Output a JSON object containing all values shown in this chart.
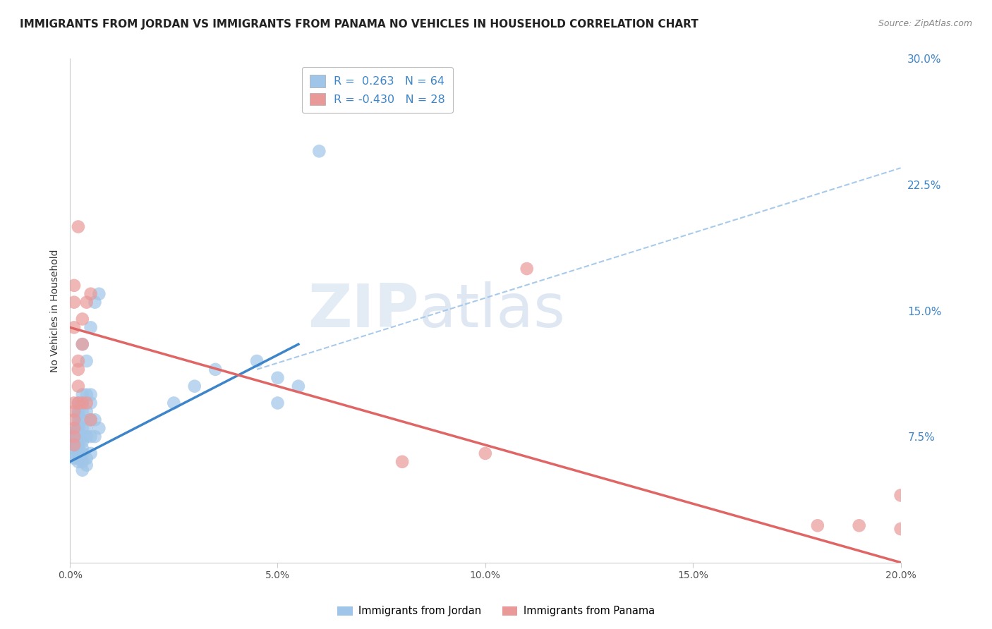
{
  "title": "IMMIGRANTS FROM JORDAN VS IMMIGRANTS FROM PANAMA NO VEHICLES IN HOUSEHOLD CORRELATION CHART",
  "source": "Source: ZipAtlas.com",
  "ylabel": "No Vehicles in Household",
  "legend_entries": [
    "Immigrants from Jordan",
    "Immigrants from Panama"
  ],
  "r_jordan": 0.263,
  "n_jordan": 64,
  "r_panama": -0.43,
  "n_panama": 28,
  "jordan_color": "#9fc5e8",
  "panama_color": "#ea9999",
  "jordan_line_color": "#3d85c8",
  "panama_line_color": "#e06666",
  "dashed_line_color": "#9fc5e8",
  "watermark_zip": "ZIP",
  "watermark_atlas": "atlas",
  "xmin": 0.0,
  "xmax": 0.2,
  "ymin": 0.0,
  "ymax": 0.3,
  "jordan_x": [
    0.001,
    0.001,
    0.001,
    0.001,
    0.001,
    0.001,
    0.001,
    0.001,
    0.001,
    0.001,
    0.001,
    0.001,
    0.001,
    0.002,
    0.002,
    0.002,
    0.002,
    0.002,
    0.002,
    0.002,
    0.002,
    0.002,
    0.002,
    0.002,
    0.002,
    0.002,
    0.003,
    0.003,
    0.003,
    0.003,
    0.003,
    0.003,
    0.003,
    0.003,
    0.003,
    0.003,
    0.003,
    0.003,
    0.004,
    0.004,
    0.004,
    0.004,
    0.004,
    0.004,
    0.004,
    0.005,
    0.005,
    0.005,
    0.005,
    0.005,
    0.005,
    0.006,
    0.006,
    0.006,
    0.007,
    0.007,
    0.025,
    0.03,
    0.035,
    0.045,
    0.05,
    0.05,
    0.055,
    0.06
  ],
  "jordan_y": [
    0.062,
    0.065,
    0.068,
    0.07,
    0.072,
    0.072,
    0.074,
    0.075,
    0.075,
    0.076,
    0.076,
    0.077,
    0.078,
    0.06,
    0.062,
    0.065,
    0.068,
    0.07,
    0.075,
    0.078,
    0.08,
    0.082,
    0.085,
    0.088,
    0.09,
    0.095,
    0.055,
    0.06,
    0.065,
    0.068,
    0.072,
    0.075,
    0.08,
    0.085,
    0.09,
    0.095,
    0.1,
    0.13,
    0.058,
    0.062,
    0.075,
    0.08,
    0.09,
    0.1,
    0.12,
    0.065,
    0.075,
    0.085,
    0.095,
    0.1,
    0.14,
    0.075,
    0.085,
    0.155,
    0.08,
    0.16,
    0.095,
    0.105,
    0.115,
    0.12,
    0.095,
    0.11,
    0.105,
    0.245
  ],
  "panama_x": [
    0.001,
    0.001,
    0.001,
    0.001,
    0.001,
    0.001,
    0.001,
    0.001,
    0.001,
    0.002,
    0.002,
    0.002,
    0.002,
    0.002,
    0.003,
    0.003,
    0.003,
    0.004,
    0.004,
    0.005,
    0.005,
    0.08,
    0.1,
    0.11,
    0.18,
    0.19,
    0.2,
    0.2
  ],
  "panama_y": [
    0.07,
    0.075,
    0.08,
    0.085,
    0.09,
    0.095,
    0.14,
    0.155,
    0.165,
    0.095,
    0.105,
    0.115,
    0.12,
    0.2,
    0.095,
    0.13,
    0.145,
    0.095,
    0.155,
    0.085,
    0.16,
    0.06,
    0.065,
    0.175,
    0.022,
    0.022,
    0.02,
    0.04
  ],
  "jordan_trend_x": [
    0.0,
    0.055
  ],
  "jordan_trend_y": [
    0.06,
    0.13
  ],
  "panama_trend_x": [
    0.0,
    0.2
  ],
  "panama_trend_y": [
    0.14,
    0.0
  ],
  "dashed_trend_x": [
    0.045,
    0.2
  ],
  "dashed_trend_y": [
    0.115,
    0.235
  ],
  "ytick_labels_right": [
    "7.5%",
    "15.0%",
    "22.5%",
    "30.0%"
  ],
  "ytick_vals": [
    0.075,
    0.15,
    0.225,
    0.3
  ],
  "xtick_labels": [
    "0.0%",
    "5.0%",
    "10.0%",
    "15.0%",
    "20.0%"
  ],
  "xtick_vals": [
    0.0,
    0.05,
    0.1,
    0.15,
    0.2
  ],
  "background_color": "#ffffff",
  "grid_color": "#cccccc",
  "title_fontsize": 11,
  "axis_label_fontsize": 10,
  "tick_fontsize": 10
}
